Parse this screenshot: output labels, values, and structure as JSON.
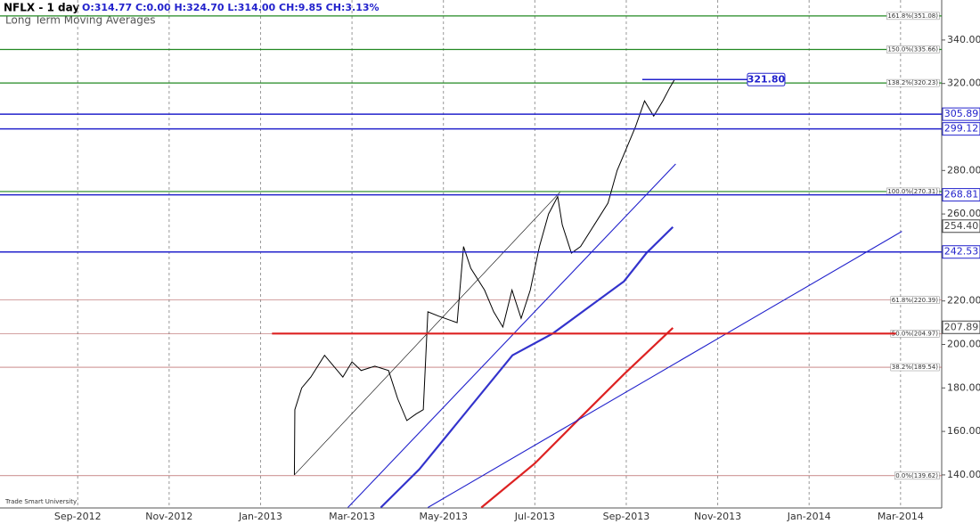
{
  "chart_data": {
    "type": "line",
    "title": "NFLX - 1 day",
    "quote": "O:314.77 C:0.00 H:324.70 L:314.00 CH:9.85 CH:3.13%",
    "subtitle": "Long Term Moving Averages",
    "source": "Trade Smart University",
    "xlim": [
      -1.7,
      18.9
    ],
    "ylim": [
      124.8,
      358.4
    ],
    "grid": true,
    "xticks": [
      {
        "value": 0,
        "label": "Sep-2012"
      },
      {
        "value": 2,
        "label": "Nov-2012"
      },
      {
        "value": 4,
        "label": "Jan-2013"
      },
      {
        "value": 6,
        "label": "Mar-2013"
      },
      {
        "value": 8,
        "label": "May-2013"
      },
      {
        "value": 10,
        "label": "Jul-2013"
      },
      {
        "value": 12,
        "label": "Sep-2013"
      },
      {
        "value": 14,
        "label": "Nov-2013"
      },
      {
        "value": 16,
        "label": "Jan-2014"
      },
      {
        "value": 18,
        "label": "Mar-2014"
      }
    ],
    "yticks": [
      {
        "value": 140,
        "label": "140.00"
      },
      {
        "value": 160,
        "label": "160.00"
      },
      {
        "value": 180,
        "label": "180.00"
      },
      {
        "value": 200,
        "label": "200.00"
      },
      {
        "value": 220,
        "label": "220.00"
      },
      {
        "value": 260,
        "label": "260.00"
      },
      {
        "value": 280,
        "label": "280.00"
      },
      {
        "value": 320,
        "label": "320.00"
      },
      {
        "value": 340,
        "label": "340.00"
      }
    ],
    "series": [
      {
        "color": "#000000",
        "style": "price",
        "x": [
          4.74,
          4.75,
          4.9,
          5.1,
          5.4,
          5.6,
          5.8,
          6.0,
          6.2,
          6.5,
          6.8,
          7.0,
          7.2,
          7.4,
          7.56,
          7.66,
          7.9,
          8.3,
          8.44,
          8.6,
          8.9,
          9.1,
          9.3,
          9.5,
          9.7,
          9.9,
          10.1,
          10.3,
          10.5,
          10.6,
          10.8,
          11.0,
          11.3,
          11.6,
          11.8,
          12.0,
          12.2,
          12.4,
          12.6,
          12.8,
          12.95,
          13.06
        ],
        "values": [
          140,
          170,
          180,
          185,
          195,
          190,
          185,
          192,
          188,
          190,
          188,
          175,
          165,
          168,
          170,
          215,
          213,
          210,
          245,
          235,
          225,
          215,
          208,
          225,
          212,
          225,
          245,
          260,
          268,
          255,
          242,
          245,
          255,
          265,
          280,
          290,
          300,
          312,
          305,
          312,
          318,
          322
        ]
      },
      {
        "color": "#3333cc",
        "style": "thick",
        "x": [
          6.63,
          7.47,
          9.51,
          10.39,
          11.17,
          11.95,
          12.44,
          13.02
        ],
        "values": [
          125,
          142.5,
          195,
          205,
          217,
          229,
          242,
          254
        ]
      },
      {
        "color": "#dd2222",
        "style": "thick",
        "x": [
          8.83,
          10.0,
          10.97,
          11.95,
          13.02
        ],
        "values": [
          125,
          145.3,
          165.8,
          186.3,
          207.6
        ]
      },
      {
        "color": "#2222cc",
        "style": "thin",
        "x": [
          5.91,
          13.08
        ],
        "values": [
          125,
          283
        ]
      },
      {
        "color": "#2222cc",
        "style": "thin",
        "x": [
          7.66,
          18.03
        ],
        "values": [
          125,
          252
        ]
      },
      {
        "color": "#000000",
        "style": "hair",
        "x": [
          4.74,
          10.55
        ],
        "values": [
          140,
          270
        ]
      },
      {
        "color": "#dd2222",
        "style": "thick",
        "x": [
          4.25,
          17.9
        ],
        "values": [
          205,
          205
        ]
      }
    ],
    "price_levels": [
      {
        "value": 305.89,
        "label": "305.89",
        "color": "#2222cc",
        "line": true
      },
      {
        "value": 299.12,
        "label": "299.12",
        "color": "#2222cc",
        "line": true
      },
      {
        "value": 268.81,
        "label": "268.81",
        "color": "#2222cc",
        "line": true
      },
      {
        "value": 242.53,
        "label": "242.53",
        "color": "#2222cc",
        "line": true
      },
      {
        "value": 254.4,
        "label": "254.40",
        "color": "#444444",
        "line": false
      },
      {
        "value": 207.89,
        "label": "207.89",
        "color": "#444444",
        "line": false
      },
      {
        "value": 321.8,
        "label": "321.80",
        "color": "#2222cc",
        "line": true,
        "x": [
          12.35,
          15.43
        ]
      }
    ],
    "fib_levels": [
      {
        "value": 351.08,
        "label": "161.8%(351.08)",
        "color": "#228822"
      },
      {
        "value": 335.66,
        "label": "150.0%(335.66)",
        "color": "#228822"
      },
      {
        "value": 320.23,
        "label": "138.2%(320.23)",
        "color": "#228822"
      },
      {
        "value": 270.31,
        "label": "100.0%(270.31)",
        "color": "#228822"
      },
      {
        "value": 220.39,
        "label": "61.8%(220.39)",
        "color": "#aa4444"
      },
      {
        "value": 204.97,
        "label": "50.0%(204.97)",
        "color": "#aa4444"
      },
      {
        "value": 189.54,
        "label": "38.2%(189.54)",
        "color": "#aa4444"
      },
      {
        "value": 139.62,
        "label": "0.0%(139.62)",
        "color": "#aa4444"
      }
    ]
  }
}
